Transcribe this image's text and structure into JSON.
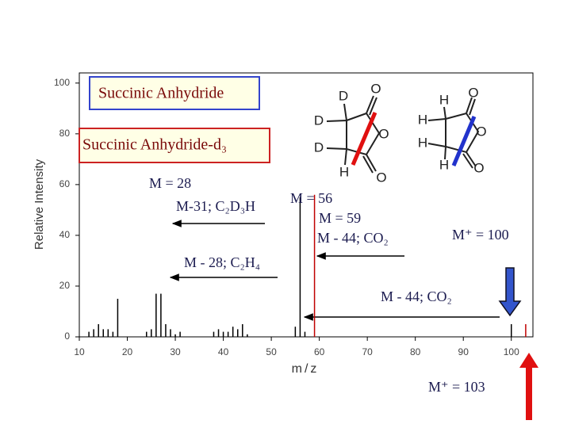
{
  "chart_data": {
    "type": "bar",
    "x_label": "m/z",
    "y_label": "Relative Intensity",
    "xlim": [
      10,
      105
    ],
    "xticks": [
      10,
      20,
      30,
      40,
      50,
      60,
      70,
      80,
      90,
      100
    ],
    "ylim": [
      0,
      104
    ],
    "yticks": [
      0,
      20,
      40,
      60,
      80,
      100
    ],
    "series": [
      {
        "name": "Succinic Anhydride",
        "color": "#000000",
        "x": [
          12,
          13,
          14,
          15,
          16,
          17,
          18,
          24,
          25,
          26,
          27,
          28,
          29,
          30,
          31,
          38,
          39,
          40,
          41,
          42,
          43,
          44,
          45,
          55,
          56,
          57,
          100
        ],
        "values": [
          2,
          3,
          5,
          3,
          3,
          2,
          15,
          2,
          3,
          17,
          17,
          5,
          3,
          1,
          2,
          2,
          3,
          2,
          2,
          4,
          3,
          5,
          1,
          4,
          55,
          2,
          5
        ]
      },
      {
        "name": "Succinic Anhydride-d₃",
        "color": "#c00000",
        "x": [
          59,
          103
        ],
        "values": [
          56,
          5
        ]
      }
    ],
    "annotations": [
      "M = 28",
      "M-31; C₂D₃H",
      "M = 56",
      "M = 59",
      "M - 44; CO₂",
      "M⁺ = 100",
      "M - 28; C₂H₄",
      "M - 44; CO₂",
      "M⁺ = 103"
    ]
  },
  "structures": {
    "deuterated": [
      "D",
      "O",
      "D",
      "O",
      "D",
      "H",
      "O"
    ],
    "normal": [
      "H",
      "O",
      "H",
      "O",
      "H",
      "H",
      "O"
    ]
  }
}
